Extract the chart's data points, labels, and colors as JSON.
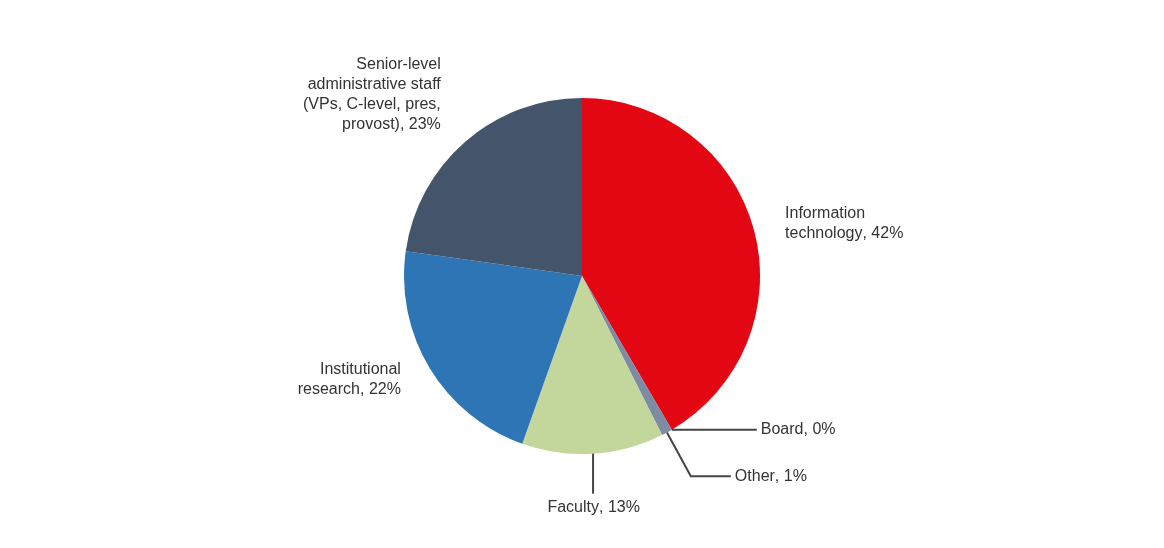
{
  "chart_data": {
    "type": "pie",
    "categories": [
      "Information technology",
      "Board",
      "Other",
      "Faculty",
      "Institutional research",
      "Senior-level administrative staff (VPs, C-level, pres, provost)"
    ],
    "values": [
      42,
      0,
      1,
      13,
      22,
      23
    ],
    "value_labels": [
      ", 42%",
      ", 0%",
      ", 1%",
      ", 13%",
      ", 22%",
      ", 23%"
    ],
    "colors": [
      "#e30613",
      "#55657a",
      "#7d8ca3",
      "#c3d69b",
      "#2e75b6",
      "#44546a"
    ],
    "legend": false
  }
}
